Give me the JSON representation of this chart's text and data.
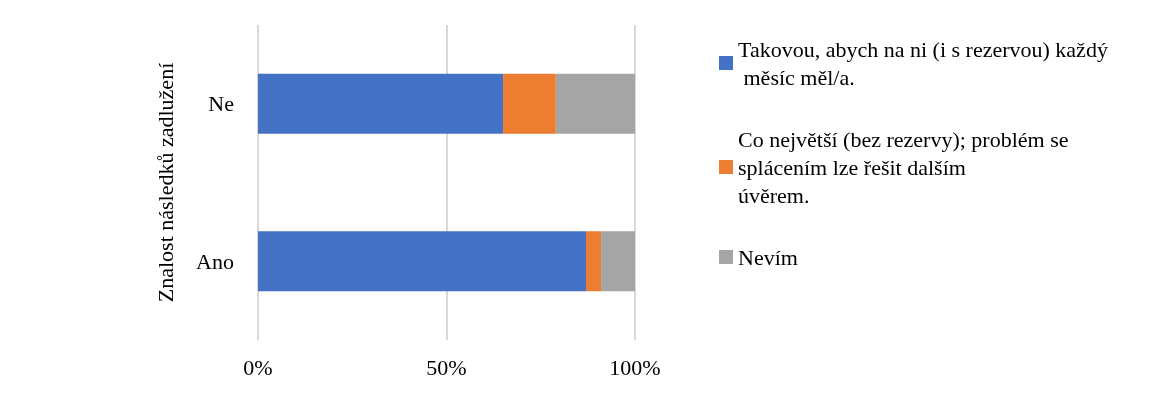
{
  "chart_data": {
    "type": "bar",
    "orientation": "horizontal",
    "stacked": true,
    "categories": [
      "Ne",
      "Ano"
    ],
    "ylabel": "Znalost následků zadlužení",
    "series": [
      {
        "name": "Takovou, abych na ni (i s rezervou) každý měsíc měl/a.",
        "color": "#4472c4",
        "values": [
          65,
          87
        ]
      },
      {
        "name": "Co největší (bez rezervy); problém se splácením lze řešit dalším úvěrem.",
        "color": "#ed7d31",
        "values": [
          14,
          4
        ]
      },
      {
        "name": "Nevím",
        "color": "#a5a5a5",
        "values": [
          21,
          9
        ]
      }
    ],
    "xlim": [
      0,
      100
    ],
    "xticks": [
      {
        "value": 0,
        "label": "0%"
      },
      {
        "value": 50,
        "label": "50%"
      },
      {
        "value": 100,
        "label": "100%"
      }
    ],
    "grid": "x",
    "legend": "right"
  }
}
